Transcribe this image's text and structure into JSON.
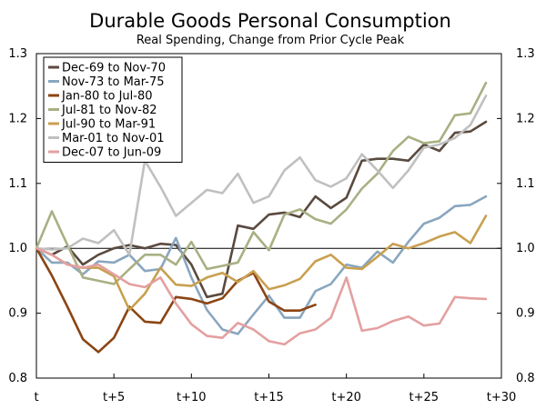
{
  "chart_data": {
    "type": "line",
    "title": "Durable Goods Personal Consumption",
    "subtitle": "Real Spending, Change from Prior Cycle Peak",
    "xlabel": "",
    "ylabel": "",
    "xlim": [
      0,
      30
    ],
    "ylim": [
      0.8,
      1.3
    ],
    "x_tick_values": [
      0,
      5,
      10,
      15,
      20,
      25,
      30
    ],
    "x_tick_labels": [
      "t",
      "t+5",
      "t+10",
      "t+15",
      "t+20",
      "t+25",
      "t+30"
    ],
    "y_tick_values": [
      0.8,
      0.9,
      1.0,
      1.1,
      1.2,
      1.3
    ],
    "y_tick_labels": [
      "0.8",
      "0.9",
      "1.0",
      "1.1",
      "1.2",
      "1.3"
    ],
    "reference_line": 1.0,
    "legend_position": "top-left",
    "series": [
      {
        "name": "Dec-69 to Nov-70",
        "color": "#5a4a3f",
        "values": [
          1.0,
          0.99,
          1.003,
          0.975,
          0.99,
          1.0,
          1.005,
          1.0,
          1.007,
          1.005,
          0.975,
          0.925,
          0.93,
          1.035,
          1.03,
          1.052,
          1.055,
          1.048,
          1.08,
          1.062,
          1.078,
          1.135,
          1.138,
          1.138,
          1.135,
          1.16,
          1.15,
          1.178,
          1.18,
          1.195
        ]
      },
      {
        "name": "Nov-73 to Mar-75",
        "color": "#8aa6bf",
        "values": [
          1.0,
          0.978,
          0.978,
          0.96,
          0.98,
          0.978,
          0.99,
          0.965,
          0.968,
          1.016,
          0.955,
          0.905,
          0.875,
          0.868,
          0.898,
          0.927,
          0.893,
          0.893,
          0.934,
          0.945,
          0.975,
          0.97,
          0.995,
          0.978,
          1.01,
          1.038,
          1.047,
          1.065,
          1.067,
          1.08
        ]
      },
      {
        "name": "Jan-80 to Jul-80",
        "color": "#8b4513",
        "values": [
          1.0,
          0.958,
          0.91,
          0.86,
          0.84,
          0.862,
          0.91,
          0.887,
          0.885,
          0.925,
          0.922,
          0.915,
          0.923,
          0.95,
          0.962,
          0.918,
          0.904,
          0.904,
          0.913
        ]
      },
      {
        "name": "Jul-81 to Nov-82",
        "color": "#a8b083",
        "values": [
          1.0,
          1.057,
          1.005,
          0.955,
          0.95,
          0.945,
          0.968,
          0.99,
          0.99,
          0.975,
          1.01,
          0.968,
          0.973,
          0.978,
          1.025,
          0.997,
          1.052,
          1.06,
          1.045,
          1.038,
          1.06,
          1.092,
          1.115,
          1.15,
          1.172,
          1.162,
          1.165,
          1.205,
          1.208,
          1.255
        ]
      },
      {
        "name": "Jul-90 to Mar-91",
        "color": "#c8a050",
        "values": [
          1.0,
          0.99,
          0.975,
          0.97,
          0.97,
          0.957,
          0.905,
          0.93,
          0.97,
          0.944,
          0.942,
          0.955,
          0.962,
          0.948,
          0.965,
          0.937,
          0.943,
          0.953,
          0.98,
          0.99,
          0.97,
          0.968,
          0.987,
          1.007,
          1.0,
          1.008,
          1.018,
          1.025,
          1.008,
          1.05
        ]
      },
      {
        "name": "Mar-01 to Nov-01",
        "color": "#c0c0c0",
        "values": [
          1.0,
          0.998,
          1.0,
          1.015,
          1.008,
          1.028,
          0.99,
          1.135,
          1.095,
          1.05,
          1.07,
          1.09,
          1.085,
          1.115,
          1.07,
          1.08,
          1.12,
          1.14,
          1.105,
          1.095,
          1.108,
          1.145,
          1.12,
          1.093,
          1.12,
          1.155,
          1.16,
          1.17,
          1.19,
          1.235
        ]
      },
      {
        "name": "Dec-07 to Jun-09",
        "color": "#e4a0a0",
        "values": [
          1.0,
          0.99,
          0.975,
          0.97,
          0.975,
          0.96,
          0.945,
          0.94,
          0.955,
          0.915,
          0.883,
          0.865,
          0.862,
          0.885,
          0.875,
          0.857,
          0.852,
          0.869,
          0.875,
          0.893,
          0.955,
          0.873,
          0.877,
          0.888,
          0.895,
          0.881,
          0.884,
          0.925,
          0.923,
          0.922
        ]
      }
    ]
  }
}
